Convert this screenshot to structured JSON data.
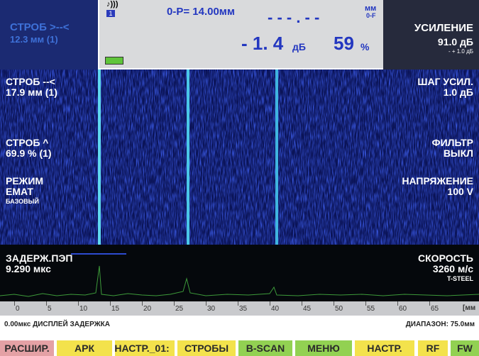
{
  "top": {
    "gate_a": {
      "label": "СТРОБ >--<",
      "value": "12.3 мм (1)"
    },
    "probe_index": "1",
    "probe_label": "0-P= 14.00мм",
    "distance": "- - - . - -",
    "distance_unit": "мм",
    "distance_mode": "0-F",
    "db": "- 1. 4",
    "db_unit": "дБ",
    "amplitude": "59",
    "amplitude_unit": "%",
    "gain": {
      "label": "УСИЛЕНИЕ",
      "value": "91.0 дБ",
      "step": "- + 1.0 дБ"
    }
  },
  "left_params": [
    {
      "label": "СТРОБ --<",
      "value": "17.9 мм (1)"
    },
    {
      "label": "СТРОБ ^",
      "value": "69.9 % (1)"
    },
    {
      "label": "РЕЖИМ",
      "value": "ЕМАТ",
      "note": "БАЗОВЫЙ"
    },
    {
      "label": "ЗАДЕРЖ.ПЭП",
      "value": "9.290 мкс"
    }
  ],
  "right_params": [
    {
      "label": "ШАГ УСИЛ.",
      "value": "1.0 дБ"
    },
    {
      "label": "ФИЛЬТР",
      "value": "ВЫКЛ"
    },
    {
      "label": "НАПРЯЖЕНИЕ",
      "value": "100 V"
    },
    {
      "label": "СКОРОСТЬ",
      "value": "3260 м/с",
      "note": "T-STEEL"
    }
  ],
  "scale": {
    "ticks": [
      0,
      5,
      10,
      15,
      20,
      25,
      30,
      35,
      40,
      45,
      50,
      55,
      60,
      65
    ],
    "unit": "[мм"
  },
  "status": {
    "delay": "0.00мкс ДИСПЛЕЙ ЗАДЕРЖКА",
    "range": "ДИАПАЗОН: 75.0мм"
  },
  "buttons": [
    {
      "label": "РАСШИР.",
      "color": "#e4a1a5"
    },
    {
      "label": "АРК",
      "color": "#f3e24c"
    },
    {
      "label": "НАСТР._01:",
      "color": "#f3e24c"
    },
    {
      "label": "СТРОБЫ",
      "color": "#f3e24c"
    },
    {
      "label": "B-SCAN",
      "color": "#92d152"
    },
    {
      "label": "МЕНЮ",
      "color": "#92d152"
    },
    {
      "label": "НАСТР.",
      "color": "#f3e24c"
    },
    {
      "label": "RF",
      "color": "#f3e24c"
    },
    {
      "label": "FW",
      "color": "#92d152"
    }
  ]
}
